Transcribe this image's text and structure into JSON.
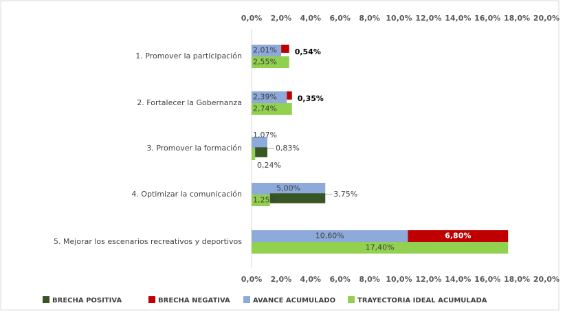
{
  "chart_data": {
    "type": "bar",
    "orientation": "horizontal",
    "categories": [
      "1. Promover la participación",
      "2. Fortalecer la Gobernanza",
      "3. Promover la formación",
      "4. Optimizar la comunicación",
      "5. Mejorar los escenarios recreativos y deportivos"
    ],
    "series": [
      {
        "name": "BRECHA POSITIVA",
        "color": "#375623",
        "values": [
          null,
          null,
          0.83,
          3.75,
          null
        ],
        "value_labels": [
          null,
          null,
          "0,83%",
          "3,75%",
          null
        ]
      },
      {
        "name": "BRECHA NEGATIVA",
        "color": "#c00000",
        "values": [
          0.54,
          0.35,
          null,
          null,
          6.8
        ],
        "value_labels": [
          "0,54%",
          "0,35%",
          null,
          null,
          "6,80%"
        ]
      },
      {
        "name": "AVANCE ACUMULADO",
        "color": "#8eaadb",
        "values": [
          2.01,
          2.39,
          1.07,
          5.0,
          10.6
        ],
        "value_labels": [
          "2,01%",
          "2,39%",
          "1,07%",
          "5,00%",
          "10,60%"
        ]
      },
      {
        "name": "TRAYECTORIA IDEAL ACUMULADA",
        "color": "#92d050",
        "values": [
          2.55,
          2.74,
          0.24,
          1.25,
          17.4
        ],
        "value_labels": [
          "2,55%",
          "2,74%",
          "0,24%",
          "1,25%",
          "17,40%"
        ]
      }
    ],
    "xlim": [
      0,
      20
    ],
    "xticks": [
      {
        "value": 0,
        "label": "0,0%"
      },
      {
        "value": 2,
        "label": "2,0%"
      },
      {
        "value": 4,
        "label": "4,0%"
      },
      {
        "value": 6,
        "label": "6,0%"
      },
      {
        "value": 8,
        "label": "8,0%"
      },
      {
        "value": 10,
        "label": "10,0%"
      },
      {
        "value": 12,
        "label": "12,0%"
      },
      {
        "value": 14,
        "label": "14,0%"
      },
      {
        "value": 16,
        "label": "16,0%"
      },
      {
        "value": 18,
        "label": "18,0%"
      },
      {
        "value": 20,
        "label": "20,0%"
      }
    ],
    "legend": "bottom"
  }
}
